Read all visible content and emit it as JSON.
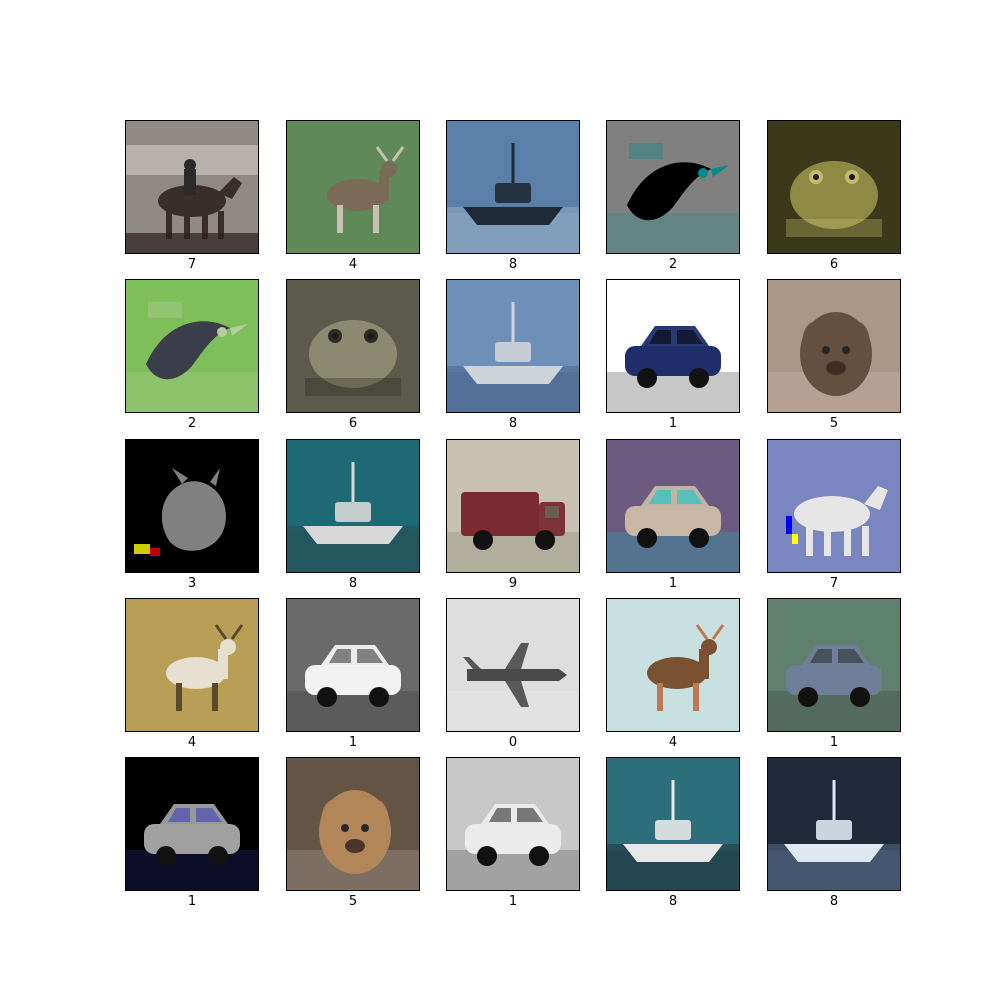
{
  "grid": {
    "rows": 5,
    "cols": 5,
    "items": [
      {
        "label": "7",
        "subject": "horse-rider",
        "colors": {
          "bg": "#8f8a86",
          "main": "#3a2e2a",
          "accent": "#d9d2cc"
        }
      },
      {
        "label": "4",
        "subject": "deer",
        "colors": {
          "bg": "#5f8a58",
          "main": "#7b6a55",
          "accent": "#c8c0b0"
        }
      },
      {
        "label": "8",
        "subject": "ship",
        "colors": {
          "bg": "#5a7fa8",
          "main": "#1e2a36",
          "accent": "#9fb8cf"
        }
      },
      {
        "label": "2",
        "subject": "bird",
        "colors": {
          "bg": "#808080",
          "main": "#000000",
          "accent": "#008b8b"
        }
      },
      {
        "label": "6",
        "subject": "frog",
        "colors": {
          "bg": "#3a3a1a",
          "main": "#8e8a45",
          "accent": "#c2bb6a"
        }
      },
      {
        "label": "2",
        "subject": "bird",
        "colors": {
          "bg": "#7fbf5a",
          "main": "#3b3e4a",
          "accent": "#b6cda2"
        }
      },
      {
        "label": "6",
        "subject": "frog",
        "colors": {
          "bg": "#5b5a4c",
          "main": "#8b8a70",
          "accent": "#2b2b25"
        }
      },
      {
        "label": "8",
        "subject": "ship",
        "colors": {
          "bg": "#6e8fb8",
          "main": "#cfd4d9",
          "accent": "#405b80"
        }
      },
      {
        "label": "1",
        "subject": "car",
        "colors": {
          "bg": "#ffffff",
          "main": "#1d2e6b",
          "accent": "#000000"
        }
      },
      {
        "label": "5",
        "subject": "dog",
        "colors": {
          "bg": "#a79484",
          "main": "#5a4636",
          "accent": "#d8c6b6"
        }
      },
      {
        "label": "3",
        "subject": "cat",
        "colors": {
          "bg": "#000000",
          "main": "#808080",
          "accent": "#cccc00"
        }
      },
      {
        "label": "8",
        "subject": "ship",
        "colors": {
          "bg": "#1e6a74",
          "main": "#d7d7d7",
          "accent": "#2b4a52"
        }
      },
      {
        "label": "9",
        "subject": "truck",
        "colors": {
          "bg": "#c8c0b0",
          "main": "#7a2b2f",
          "accent": "#5f6d55"
        }
      },
      {
        "label": "1",
        "subject": "car",
        "colors": {
          "bg": "#6c5a80",
          "main": "#c9b7a5",
          "accent": "#00cccc"
        }
      },
      {
        "label": "7",
        "subject": "horse",
        "colors": {
          "bg": "#7a86c0",
          "main": "#e6e6e6",
          "accent": "#0000ff"
        }
      },
      {
        "label": "4",
        "subject": "deer",
        "colors": {
          "bg": "#b89f55",
          "main": "#e7dfcf",
          "accent": "#5c4a2e"
        }
      },
      {
        "label": "1",
        "subject": "car",
        "colors": {
          "bg": "#6a6a6a",
          "main": "#f2f2f2",
          "accent": "#2b2b2b"
        }
      },
      {
        "label": "0",
        "subject": "airplane",
        "colors": {
          "bg": "#d8d8d8",
          "main": "#4a4a4a",
          "accent": "#f0f0f0"
        }
      },
      {
        "label": "4",
        "subject": "deer",
        "colors": {
          "bg": "#c8e0e0",
          "main": "#7a5232",
          "accent": "#c07850"
        }
      },
      {
        "label": "1",
        "subject": "car",
        "colors": {
          "bg": "#5f7f6f",
          "main": "#6f7f99",
          "accent": "#2a2a2a"
        }
      },
      {
        "label": "1",
        "subject": "car",
        "colors": {
          "bg": "#000000",
          "main": "#a0a0a0",
          "accent": "#3a3ac0"
        }
      },
      {
        "label": "5",
        "subject": "dog",
        "colors": {
          "bg": "#5a4a3a",
          "main": "#b08050",
          "accent": "#d8d2cc"
        }
      },
      {
        "label": "1",
        "subject": "car",
        "colors": {
          "bg": "#c8c8c8",
          "main": "#ececec",
          "accent": "#1a1a1a"
        }
      },
      {
        "label": "8",
        "subject": "ship",
        "colors": {
          "bg": "#2c6e7a",
          "main": "#e8e8e8",
          "accent": "#1f2a30"
        }
      },
      {
        "label": "8",
        "subject": "ship",
        "colors": {
          "bg": "#202a3a",
          "main": "#dfe7f0",
          "accent": "#5f7a9a"
        }
      }
    ]
  }
}
